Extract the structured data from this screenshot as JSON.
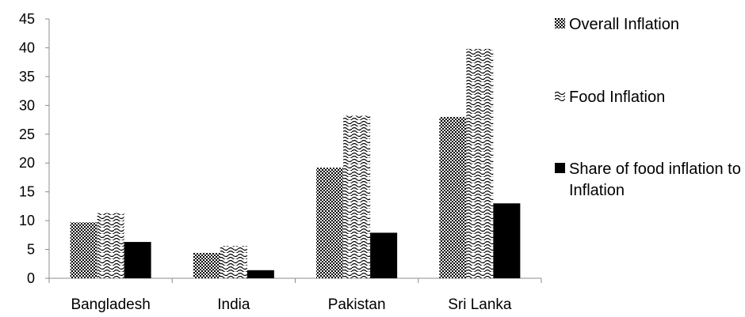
{
  "chart_data": {
    "type": "bar",
    "title": "",
    "xlabel": "",
    "ylabel": "",
    "categories": [
      "Bangladesh",
      "India",
      "Pakistan",
      "Sri Lanka"
    ],
    "ylim": [
      0,
      45
    ],
    "yticks": [
      0,
      5,
      10,
      15,
      20,
      25,
      30,
      35,
      40,
      45
    ],
    "grid": false,
    "legend_position": "right",
    "series": [
      {
        "name": "Overall Inflation",
        "values": [
          9.7,
          4.4,
          19.2,
          28.0
        ],
        "pattern": "checker"
      },
      {
        "name": "Food Inflation",
        "values": [
          11.3,
          5.6,
          28.2,
          39.8
        ],
        "pattern": "wave"
      },
      {
        "name": "Share of food inflation to Inflation",
        "values": [
          6.3,
          1.4,
          7.9,
          13.0
        ],
        "pattern": "solid"
      }
    ]
  },
  "colors": {
    "axis": "#8c8c8c",
    "solid": "#000000",
    "pattern_bg": "#ffffff"
  }
}
